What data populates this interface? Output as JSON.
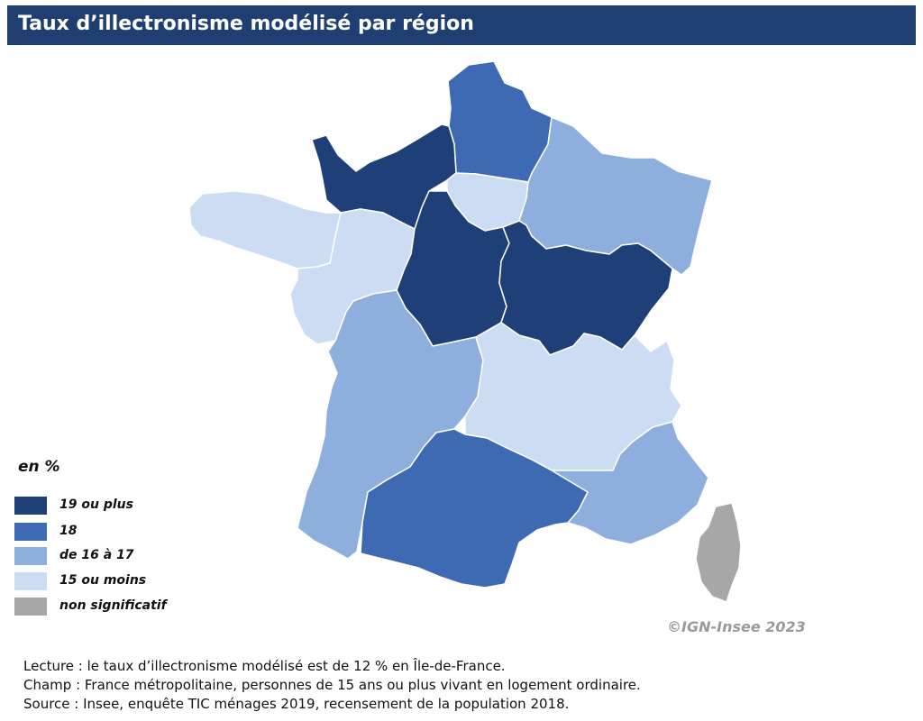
{
  "title": "Taux d’illectronisme modélisé par région",
  "legend": {
    "title": "en %",
    "classes": [
      {
        "label": "19 ou plus",
        "color": "#1f3f78"
      },
      {
        "label": "18",
        "color": "#3e69b3"
      },
      {
        "label": "de 16 à 17",
        "color": "#8eaedd"
      },
      {
        "label": "15 ou moins",
        "color": "#cbdcf3"
      },
      {
        "label": "non significatif",
        "color": "#a7a7a7"
      }
    ]
  },
  "regions": [
    {
      "name": "Hauts-de-France",
      "class": "18"
    },
    {
      "name": "Normandie",
      "class": "19 ou plus"
    },
    {
      "name": "Île-de-France",
      "class": "15 ou moins"
    },
    {
      "name": "Grand Est",
      "class": "de 16 à 17"
    },
    {
      "name": "Bretagne",
      "class": "15 ou moins"
    },
    {
      "name": "Pays de la Loire",
      "class": "15 ou moins"
    },
    {
      "name": "Centre-Val de Loire",
      "class": "19 ou plus"
    },
    {
      "name": "Bourgogne-Franche-Comté",
      "class": "19 ou plus"
    },
    {
      "name": "Nouvelle-Aquitaine",
      "class": "de 16 à 17"
    },
    {
      "name": "Auvergne-Rhône-Alpes",
      "class": "15 ou moins"
    },
    {
      "name": "Occitanie",
      "class": "18"
    },
    {
      "name": "Provence-Alpes-Côte d’Azur",
      "class": "de 16 à 17"
    },
    {
      "name": "Corse",
      "class": "non significatif"
    }
  ],
  "copyright": "©IGN-Insee 2023",
  "notes": [
    "Lecture : le taux d’illectronisme modélisé est de 12 % en Île-de-France.",
    "Champ : France métropolitaine, personnes de 15 ans ou plus vivant en logement ordinaire.",
    "Source : Insee, enquête TIC ménages 2019, recensement de la population 2018."
  ]
}
